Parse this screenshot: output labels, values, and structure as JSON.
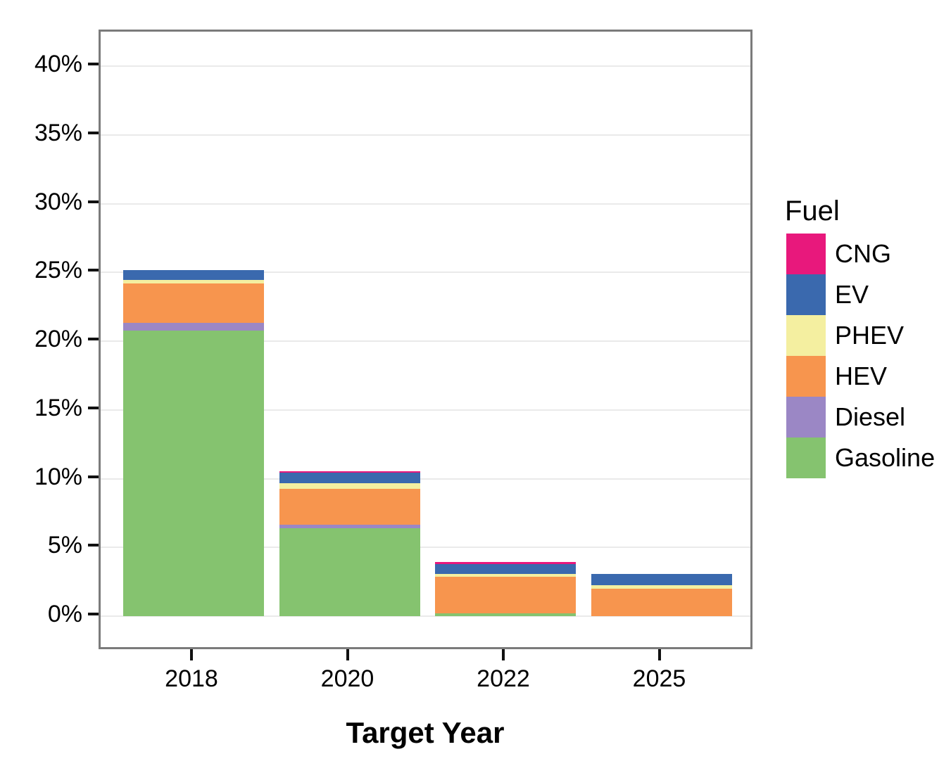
{
  "chart_data": {
    "type": "bar",
    "stacked": true,
    "title": "",
    "xlabel": "Target Year",
    "ylabel": "",
    "categories": [
      "2018",
      "2020",
      "2022",
      "2025"
    ],
    "series": [
      {
        "name": "Gasoline",
        "color": "#85c36f",
        "values": [
          20.8,
          6.4,
          0.2,
          0
        ]
      },
      {
        "name": "Diesel",
        "color": "#9b87c5",
        "values": [
          0.55,
          0.25,
          0,
          0
        ]
      },
      {
        "name": "HEV",
        "color": "#f7954e",
        "values": [
          2.85,
          2.6,
          2.65,
          2.0
        ]
      },
      {
        "name": "PHEV",
        "color": "#f4efa0",
        "values": [
          0.25,
          0.45,
          0.25,
          0.25
        ]
      },
      {
        "name": "EV",
        "color": "#3a69ae",
        "values": [
          0.7,
          0.75,
          0.7,
          0.8
        ]
      },
      {
        "name": "CNG",
        "color": "#e8187c",
        "values": [
          0,
          0.1,
          0.15,
          0
        ]
      }
    ],
    "bar_totals_pct": [
      25.15,
      10.55,
      3.95,
      3.05
    ],
    "y_axis": {
      "tick_labels": [
        "0%",
        "5%",
        "10%",
        "15%",
        "20%",
        "25%",
        "30%",
        "35%",
        "40%"
      ],
      "tick_values": [
        0,
        5,
        10,
        15,
        20,
        25,
        30,
        35,
        40
      ],
      "range": [
        0,
        42.5
      ]
    },
    "grid": "horizontal-major",
    "legend": {
      "title": "Fuel",
      "position": "right",
      "entries": [
        {
          "label": "CNG",
          "color": "#e8187c"
        },
        {
          "label": "EV",
          "color": "#3a69ae"
        },
        {
          "label": "PHEV",
          "color": "#f4efa0"
        },
        {
          "label": "HEV",
          "color": "#f7954e"
        },
        {
          "label": "Diesel",
          "color": "#9b87c5"
        },
        {
          "label": "Gasoline",
          "color": "#85c36f"
        }
      ]
    },
    "colors": {
      "panel_border": "#7b7b7b",
      "gridline": "#eaeaea",
      "tick": "#111111",
      "text": "#000000",
      "background": "#ffffff"
    }
  }
}
